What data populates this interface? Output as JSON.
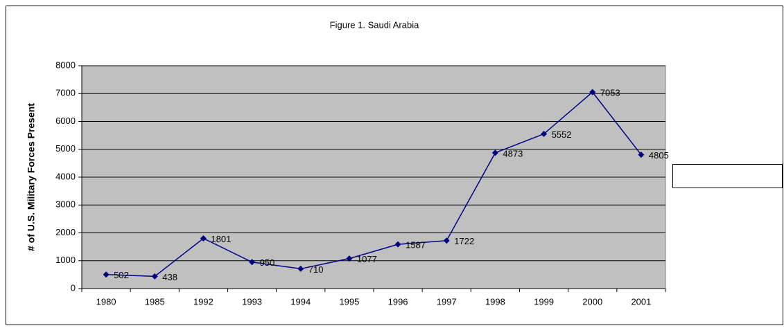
{
  "chart_data": {
    "type": "line",
    "title": "Figure 1.  Saudi Arabia",
    "y_label": "# of U.S. Military Forces Present",
    "categories": [
      "1980",
      "1985",
      "1992",
      "1993",
      "1994",
      "1995",
      "1996",
      "1997",
      "1998",
      "1999",
      "2000",
      "2001"
    ],
    "series": [
      {
        "name": "Saudi Arabia",
        "color": "#000080",
        "values": [
          502,
          438,
          1801,
          950,
          710,
          1077,
          1587,
          1722,
          4873,
          5552,
          7053,
          4805
        ]
      }
    ],
    "ylim": [
      0,
      8000
    ],
    "yticks": [
      0,
      1000,
      2000,
      3000,
      4000,
      5000,
      6000,
      7000,
      8000
    ],
    "grid": true,
    "legend": "right",
    "data_labels": true,
    "plot_background": "#c0c0c0"
  }
}
